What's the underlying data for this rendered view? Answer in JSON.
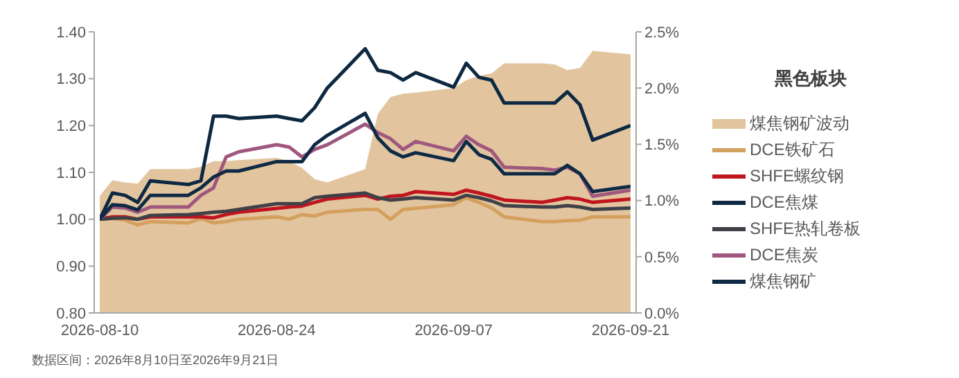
{
  "chart_data": {
    "type": "line",
    "legend_title": "黑色板块",
    "annotations": [
      "数据区间：2026年8月10日至2026年9月21日"
    ],
    "x": [
      "2026-08-10",
      "2026-08-11",
      "2026-08-12",
      "2026-08-13",
      "2026-08-14",
      "2026-08-17",
      "2026-08-18",
      "2026-08-19",
      "2026-08-20",
      "2026-08-21",
      "2026-08-24",
      "2026-08-25",
      "2026-08-26",
      "2026-08-27",
      "2026-08-28",
      "2026-08-31",
      "2026-09-01",
      "2026-09-02",
      "2026-09-03",
      "2026-09-04",
      "2026-09-07",
      "2026-09-08",
      "2026-09-09",
      "2026-09-10",
      "2026-09-11",
      "2026-09-14",
      "2026-09-15",
      "2026-09-16",
      "2026-09-17",
      "2026-09-18",
      "2026-09-21"
    ],
    "series": [
      {
        "name": "煤焦钢矿波动",
        "type": "area",
        "axis": "y2",
        "color": "#e2c59f",
        "values": [
          1.04,
          1.18,
          1.16,
          1.15,
          1.28,
          1.28,
          1.3,
          1.35,
          1.35,
          1.36,
          1.38,
          1.35,
          1.29,
          1.19,
          1.16,
          1.28,
          1.77,
          1.92,
          1.95,
          1.96,
          2.0,
          2.07,
          2.11,
          2.13,
          2.22,
          2.22,
          2.21,
          2.16,
          2.18,
          2.33,
          2.3
        ]
      },
      {
        "name": "DCE铁矿石",
        "color": "#d4a05e",
        "values": [
          1.0,
          1.002,
          0.998,
          0.988,
          0.995,
          0.992,
          1.002,
          0.992,
          0.995,
          1.0,
          1.005,
          1.0,
          1.01,
          1.007,
          1.015,
          1.021,
          1.021,
          1.0,
          1.021,
          1.023,
          1.031,
          1.046,
          1.036,
          1.024,
          1.005,
          0.995,
          0.995,
          0.997,
          0.998,
          1.005,
          1.005
        ]
      },
      {
        "name": "SHFE螺纹钢",
        "color": "#c0141e",
        "values": [
          1.0,
          1.005,
          1.005,
          1.0,
          1.005,
          1.005,
          1.005,
          1.003,
          1.01,
          1.015,
          1.023,
          1.026,
          1.028,
          1.036,
          1.043,
          1.051,
          1.043,
          1.049,
          1.051,
          1.059,
          1.053,
          1.062,
          1.056,
          1.049,
          1.041,
          1.036,
          1.041,
          1.046,
          1.043,
          1.036,
          1.043
        ]
      },
      {
        "name": "DCE焦煤",
        "color": "#0d2840",
        "values": [
          1.0,
          1.056,
          1.051,
          1.036,
          1.082,
          1.074,
          1.082,
          1.22,
          1.22,
          1.215,
          1.22,
          1.215,
          1.21,
          1.238,
          1.28,
          1.364,
          1.318,
          1.313,
          1.297,
          1.313,
          1.282,
          1.333,
          1.303,
          1.297,
          1.248,
          1.248,
          1.248,
          1.272,
          1.244,
          1.169,
          1.2
        ]
      },
      {
        "name": "SHFE热轧卷板",
        "color": "#404048",
        "values": [
          1.0,
          1.002,
          1.003,
          1.0,
          1.008,
          1.01,
          1.012,
          1.015,
          1.017,
          1.021,
          1.033,
          1.033,
          1.033,
          1.046,
          1.049,
          1.056,
          1.046,
          1.041,
          1.043,
          1.046,
          1.041,
          1.051,
          1.046,
          1.039,
          1.029,
          1.026,
          1.026,
          1.029,
          1.026,
          1.021,
          1.024
        ]
      },
      {
        "name": "DCE焦炭",
        "color": "#a0577e",
        "values": [
          1.0,
          1.026,
          1.024,
          1.015,
          1.026,
          1.026,
          1.051,
          1.067,
          1.133,
          1.144,
          1.159,
          1.154,
          1.133,
          1.149,
          1.159,
          1.203,
          1.185,
          1.172,
          1.149,
          1.166,
          1.146,
          1.177,
          1.159,
          1.146,
          1.111,
          1.108,
          1.105,
          1.111,
          1.097,
          1.049,
          1.062
        ]
      },
      {
        "name": "煤焦钢矿",
        "color": "#0f2a45",
        "values": [
          1.0,
          1.031,
          1.029,
          1.02,
          1.051,
          1.051,
          1.067,
          1.09,
          1.103,
          1.103,
          1.123,
          1.123,
          1.123,
          1.159,
          1.179,
          1.226,
          1.174,
          1.146,
          1.133,
          1.142,
          1.125,
          1.166,
          1.138,
          1.128,
          1.097,
          1.097,
          1.097,
          1.115,
          1.097,
          1.059,
          1.07
        ]
      }
    ],
    "xlim": [
      "2026-08-10",
      "2026-09-21"
    ],
    "xticks": [
      "2026-08-10",
      "2026-08-24",
      "2026-09-07",
      "2026-09-21"
    ],
    "ylim": [
      0.8,
      1.4
    ],
    "yticks": [
      {
        "value": 0.8,
        "label": "0.80"
      },
      {
        "value": 0.9,
        "label": "0.90"
      },
      {
        "value": 1.0,
        "label": "1.00"
      },
      {
        "value": 1.1,
        "label": "1.10"
      },
      {
        "value": 1.2,
        "label": "1.20"
      },
      {
        "value": 1.3,
        "label": "1.30"
      },
      {
        "value": 1.4,
        "label": "1.40"
      }
    ],
    "y2lim": [
      0,
      2.5
    ],
    "y2ticks": [
      {
        "value": 0,
        "label": "0.0%"
      },
      {
        "value": 0.5,
        "label": "0.5%"
      },
      {
        "value": 1,
        "label": "1.0%"
      },
      {
        "value": 1.5,
        "label": "1.5%"
      },
      {
        "value": 2,
        "label": "2.0%"
      },
      {
        "value": 2.5,
        "label": "2.5%"
      }
    ],
    "grid": false,
    "legend": "right",
    "marker": "none",
    "line_style": "solid"
  }
}
